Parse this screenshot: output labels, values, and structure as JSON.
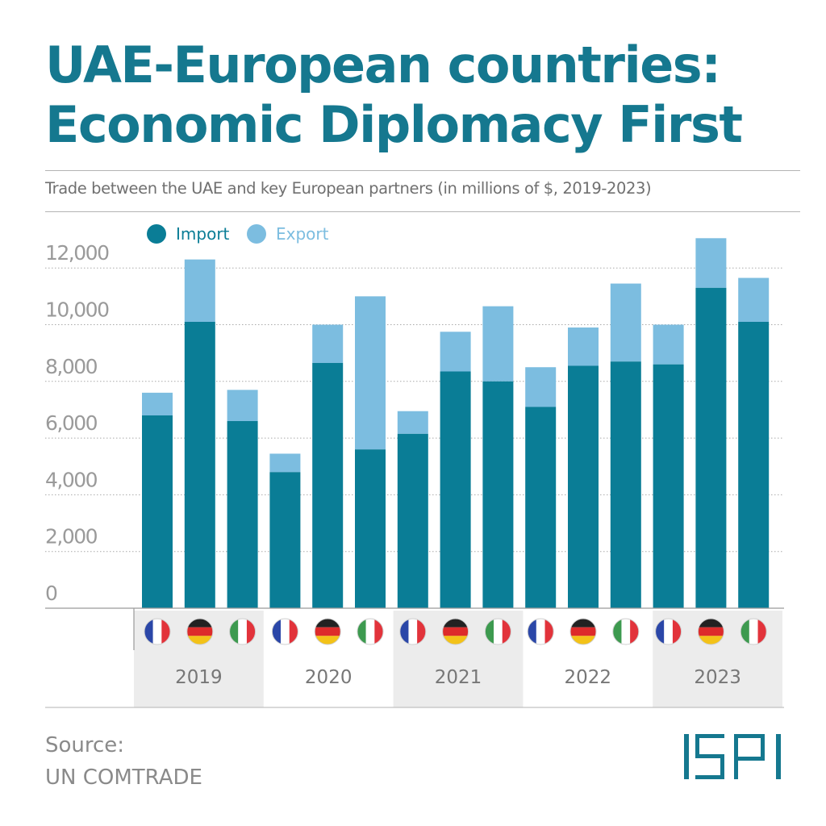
{
  "header": {
    "title_line1": "UAE-European countries:",
    "title_line2": "Economic Diplomacy First",
    "subtitle": "Trade between the UAE and key European partners (in millions of $, 2019-2023)"
  },
  "footer": {
    "source_label": "Source:",
    "source_value": "UN COMTRADE",
    "logo_text": "ISPI"
  },
  "colors": {
    "import": "#0a7d96",
    "export": "#7cbde0",
    "title": "#15788f",
    "axis_text": "#9a9a9a",
    "band": "#ececec"
  },
  "chart_data": {
    "type": "bar",
    "stacked": true,
    "ylim": [
      0,
      14000
    ],
    "yticks": [
      0,
      2000,
      4000,
      6000,
      8000,
      10000,
      12000
    ],
    "ytick_labels": [
      "0",
      "2,000",
      "4,000",
      "6,000",
      "8,000",
      "10,000",
      "12,000"
    ],
    "grid": true,
    "legend": [
      {
        "name": "Import",
        "color": "#0a7d96"
      },
      {
        "name": "Export",
        "color": "#7cbde0"
      }
    ],
    "legend_position": "top-left",
    "groups": [
      {
        "year": "2019",
        "bars": [
          {
            "country": "France",
            "flag": "fr",
            "import": 6800,
            "export": 800
          },
          {
            "country": "Germany",
            "flag": "de",
            "import": 10100,
            "export": 2200
          },
          {
            "country": "Italy",
            "flag": "it",
            "import": 6600,
            "export": 1100
          }
        ]
      },
      {
        "year": "2020",
        "bars": [
          {
            "country": "France",
            "flag": "fr",
            "import": 4800,
            "export": 650
          },
          {
            "country": "Germany",
            "flag": "de",
            "import": 8650,
            "export": 1350
          },
          {
            "country": "Italy",
            "flag": "it",
            "import": 5600,
            "export": 5400
          }
        ]
      },
      {
        "year": "2021",
        "bars": [
          {
            "country": "France",
            "flag": "fr",
            "import": 6150,
            "export": 800
          },
          {
            "country": "Germany",
            "flag": "de",
            "import": 8350,
            "export": 1400
          },
          {
            "country": "Italy",
            "flag": "it",
            "import": 8000,
            "export": 2650
          }
        ]
      },
      {
        "year": "2022",
        "bars": [
          {
            "country": "France",
            "flag": "fr",
            "import": 7100,
            "export": 1400
          },
          {
            "country": "Germany",
            "flag": "de",
            "import": 8550,
            "export": 1350
          },
          {
            "country": "Italy",
            "flag": "it",
            "import": 8700,
            "export": 2750
          }
        ]
      },
      {
        "year": "2023",
        "bars": [
          {
            "country": "France",
            "flag": "fr",
            "import": 8600,
            "export": 1400
          },
          {
            "country": "Germany",
            "flag": "de",
            "import": 11300,
            "export": 1750
          },
          {
            "country": "Italy",
            "flag": "it",
            "import": 10100,
            "export": 1550
          }
        ]
      }
    ]
  }
}
